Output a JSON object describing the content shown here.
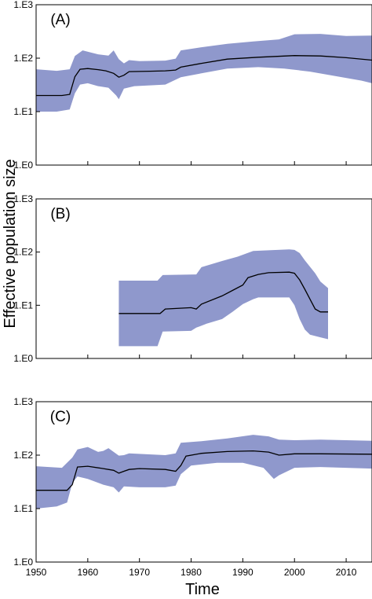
{
  "xlabel": "Time",
  "ylabel": "Effective population size",
  "chart_data": [
    {
      "type": "area",
      "panel_label": "(A)",
      "scale": "log10",
      "ylim": [
        1,
        1000
      ],
      "yticks": [
        "1.E0",
        "1.E1",
        "1.E2",
        "1.E3"
      ],
      "xlim": [
        1950,
        2015
      ],
      "colors": {
        "band": "#8f98cc",
        "line": "#000000"
      },
      "median": [
        [
          1950,
          20
        ],
        [
          1955,
          20
        ],
        [
          1956.5,
          21
        ],
        [
          1957.5,
          45
        ],
        [
          1958.5,
          62
        ],
        [
          1960,
          64
        ],
        [
          1962,
          61
        ],
        [
          1963.5,
          58
        ],
        [
          1965,
          52
        ],
        [
          1966,
          44
        ],
        [
          1967,
          48
        ],
        [
          1968,
          56
        ],
        [
          1972,
          57
        ],
        [
          1975,
          58
        ],
        [
          1977,
          60
        ],
        [
          1978,
          68
        ],
        [
          1982,
          80
        ],
        [
          1987,
          96
        ],
        [
          1993,
          104
        ],
        [
          2000,
          112
        ],
        [
          2005,
          110
        ],
        [
          2010,
          102
        ],
        [
          2015,
          92
        ]
      ],
      "upper": [
        [
          1950,
          62
        ],
        [
          1954,
          58
        ],
        [
          1956.5,
          62
        ],
        [
          1957.5,
          110
        ],
        [
          1959,
          140
        ],
        [
          1962,
          118
        ],
        [
          1964,
          112
        ],
        [
          1965,
          140
        ],
        [
          1966,
          96
        ],
        [
          1967,
          80
        ],
        [
          1968,
          92
        ],
        [
          1970,
          88
        ],
        [
          1975,
          90
        ],
        [
          1977,
          98
        ],
        [
          1978,
          140
        ],
        [
          1982,
          160
        ],
        [
          1987,
          185
        ],
        [
          1992,
          205
        ],
        [
          1997,
          225
        ],
        [
          2000,
          280
        ],
        [
          2005,
          285
        ],
        [
          2010,
          260
        ],
        [
          2015,
          265
        ]
      ],
      "lower": [
        [
          1950,
          10
        ],
        [
          1954,
          10
        ],
        [
          1956.5,
          11
        ],
        [
          1957.5,
          22
        ],
        [
          1958.5,
          32
        ],
        [
          1960,
          34
        ],
        [
          1962,
          30
        ],
        [
          1964,
          28
        ],
        [
          1965.5,
          20
        ],
        [
          1966,
          17
        ],
        [
          1967,
          27
        ],
        [
          1969,
          30
        ],
        [
          1975,
          32
        ],
        [
          1978,
          44
        ],
        [
          1982,
          52
        ],
        [
          1987,
          64
        ],
        [
          1993,
          68
        ],
        [
          1998,
          64
        ],
        [
          2003,
          56
        ],
        [
          2008,
          46
        ],
        [
          2013,
          38
        ],
        [
          2015,
          34
        ]
      ]
    },
    {
      "type": "area",
      "panel_label": "(B)",
      "scale": "log10",
      "ylim": [
        1,
        1000
      ],
      "yticks": [
        "1.E0",
        "1.E1",
        "1.E2",
        "1.E3"
      ],
      "xlim": [
        1950,
        2015
      ],
      "colors": {
        "band": "#8f98cc",
        "line": "#000000"
      },
      "median": [
        [
          1966,
          7
        ],
        [
          1974,
          7
        ],
        [
          1975,
          8.5
        ],
        [
          1980,
          9
        ],
        [
          1981,
          8.5
        ],
        [
          1982,
          10.5
        ],
        [
          1986,
          15
        ],
        [
          1988,
          19
        ],
        [
          1990,
          24
        ],
        [
          1991,
          33
        ],
        [
          1993,
          38
        ],
        [
          1995,
          41
        ],
        [
          1999,
          42
        ],
        [
          2000,
          40
        ],
        [
          2001,
          30
        ],
        [
          2002,
          20
        ],
        [
          2003,
          13
        ],
        [
          2004,
          8.5
        ],
        [
          2005,
          7.5
        ],
        [
          2006.5,
          7.5
        ]
      ],
      "upper": [
        [
          1966,
          29
        ],
        [
          1973.5,
          29
        ],
        [
          1974.5,
          37
        ],
        [
          1981,
          38
        ],
        [
          1982,
          52
        ],
        [
          1986,
          68
        ],
        [
          1989,
          82
        ],
        [
          1992,
          105
        ],
        [
          1995,
          108
        ],
        [
          1999,
          112
        ],
        [
          2000,
          110
        ],
        [
          2001,
          96
        ],
        [
          2002,
          70
        ],
        [
          2004,
          40
        ],
        [
          2005,
          28
        ],
        [
          2006.5,
          21
        ]
      ],
      "lower": [
        [
          1966,
          1.7
        ],
        [
          1973.5,
          1.7
        ],
        [
          1974.5,
          3.2
        ],
        [
          1980,
          3.3
        ],
        [
          1981,
          3.8
        ],
        [
          1983,
          4.5
        ],
        [
          1986,
          5.5
        ],
        [
          1988,
          7.5
        ],
        [
          1990,
          10.5
        ],
        [
          1992,
          13
        ],
        [
          1993,
          14
        ],
        [
          1999,
          14
        ],
        [
          2000,
          10
        ],
        [
          2001,
          5.5
        ],
        [
          2002,
          3.5
        ],
        [
          2003,
          2.8
        ],
        [
          2005,
          2.5
        ],
        [
          2006.5,
          2.3
        ]
      ]
    },
    {
      "type": "area",
      "panel_label": "(C)",
      "scale": "log10",
      "ylim": [
        1,
        1000
      ],
      "yticks": [
        "1.E0",
        "1.E1",
        "1.E2",
        "1.E3"
      ],
      "xlim": [
        1950,
        2015
      ],
      "xticks": [
        "1950",
        "1960",
        "1970",
        "1980",
        "1990",
        "2000",
        "2010"
      ],
      "colors": {
        "band": "#8f98cc",
        "line": "#000000"
      },
      "median": [
        [
          1950,
          22
        ],
        [
          1956,
          22
        ],
        [
          1957,
          28
        ],
        [
          1958,
          60
        ],
        [
          1960,
          62
        ],
        [
          1963,
          56
        ],
        [
          1965,
          52
        ],
        [
          1966,
          46
        ],
        [
          1967,
          50
        ],
        [
          1968,
          54
        ],
        [
          1970,
          56
        ],
        [
          1975,
          54
        ],
        [
          1977,
          50
        ],
        [
          1978,
          64
        ],
        [
          1979,
          96
        ],
        [
          1982,
          108
        ],
        [
          1987,
          117
        ],
        [
          1992,
          120
        ],
        [
          1995,
          114
        ],
        [
          1997,
          100
        ],
        [
          2000,
          106
        ],
        [
          2005,
          106
        ],
        [
          2015,
          104
        ]
      ],
      "upper": [
        [
          1950,
          62
        ],
        [
          1955,
          58
        ],
        [
          1957,
          90
        ],
        [
          1958,
          128
        ],
        [
          1960,
          142
        ],
        [
          1962,
          115
        ],
        [
          1963,
          120
        ],
        [
          1964,
          135
        ],
        [
          1965,
          115
        ],
        [
          1966,
          98
        ],
        [
          1967,
          100
        ],
        [
          1968,
          108
        ],
        [
          1975,
          100
        ],
        [
          1977,
          108
        ],
        [
          1978,
          170
        ],
        [
          1982,
          182
        ],
        [
          1987,
          205
        ],
        [
          1992,
          240
        ],
        [
          1995,
          225
        ],
        [
          1997,
          195
        ],
        [
          2000,
          190
        ],
        [
          2005,
          195
        ],
        [
          2010,
          190
        ],
        [
          2015,
          185
        ]
      ],
      "lower": [
        [
          1950,
          10
        ],
        [
          1954,
          11
        ],
        [
          1956,
          13
        ],
        [
          1957,
          30
        ],
        [
          1958,
          40
        ],
        [
          1960,
          36
        ],
        [
          1963,
          28
        ],
        [
          1965,
          25
        ],
        [
          1966,
          20
        ],
        [
          1967,
          26
        ],
        [
          1970,
          25
        ],
        [
          1975,
          25
        ],
        [
          1977,
          27
        ],
        [
          1978,
          44
        ],
        [
          1980,
          64
        ],
        [
          1985,
          72
        ],
        [
          1990,
          72
        ],
        [
          1994,
          58
        ],
        [
          1996,
          36
        ],
        [
          1997,
          42
        ],
        [
          2000,
          58
        ],
        [
          2005,
          60
        ],
        [
          2010,
          58
        ],
        [
          2015,
          56
        ]
      ]
    }
  ]
}
